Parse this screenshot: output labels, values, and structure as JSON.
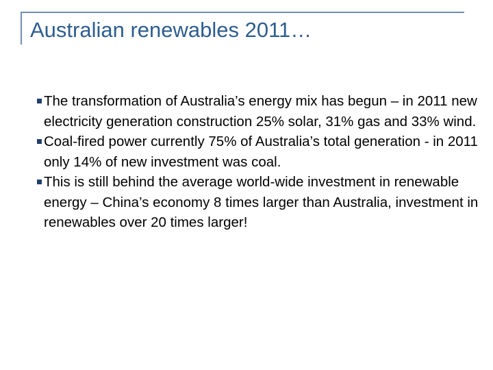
{
  "header": {
    "title": "Australian renewables 2011…"
  },
  "bullets": [
    "The transformation of Australia’s energy mix has begun – in 2011 new electricity generation construction 25% solar, 31% gas and 33% wind.",
    "Coal-fired power currently 75% of Australia’s total generation - in 2011 only 14% of new investment was coal.",
    "This is still behind the average world-wide investment in renewable energy – China’s economy 8 times larger than Australia, investment in renewables over 20 times larger!"
  ]
}
